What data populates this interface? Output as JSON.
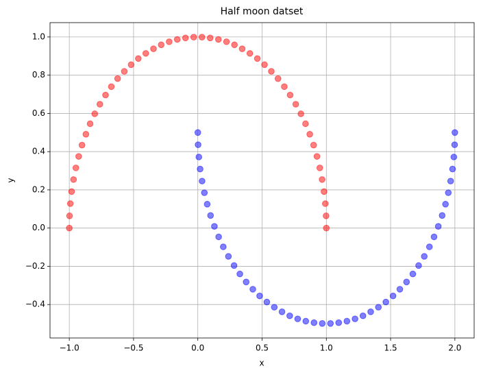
{
  "chart_data": {
    "type": "scatter",
    "title": "Half moon datset",
    "xlabel": "x",
    "ylabel": "y",
    "grid": true,
    "xlim": [
      -1.15,
      2.15
    ],
    "ylim": [
      -0.575,
      1.075
    ],
    "xticks": [
      {
        "value": -1.0,
        "label": "−1.0"
      },
      {
        "value": -0.5,
        "label": "−0.5"
      },
      {
        "value": 0.0,
        "label": "0.0"
      },
      {
        "value": 0.5,
        "label": "0.5"
      },
      {
        "value": 1.0,
        "label": "1.0"
      },
      {
        "value": 1.5,
        "label": "1.5"
      },
      {
        "value": 2.0,
        "label": "2.0"
      }
    ],
    "yticks": [
      {
        "value": -0.4,
        "label": "−0.4"
      },
      {
        "value": -0.2,
        "label": "−0.2"
      },
      {
        "value": 0.0,
        "label": "0.0"
      },
      {
        "value": 0.2,
        "label": "0.2"
      },
      {
        "value": 0.4,
        "label": "0.4"
      },
      {
        "value": 0.6,
        "label": "0.6"
      },
      {
        "value": 0.8,
        "label": "0.8"
      },
      {
        "value": 1.0,
        "label": "1.0"
      }
    ],
    "series": [
      {
        "color": "#ff0000",
        "opacity": 0.5,
        "x": [
          1,
          0.998,
          0.992,
          0.982,
          0.967,
          0.949,
          0.927,
          0.901,
          0.871,
          0.838,
          0.802,
          0.762,
          0.718,
          0.673,
          0.624,
          0.572,
          0.519,
          0.463,
          0.405,
          0.345,
          0.285,
          0.223,
          0.16,
          0.096,
          0.032,
          -0.032,
          -0.096,
          -0.16,
          -0.223,
          -0.285,
          -0.345,
          -0.405,
          -0.463,
          -0.519,
          -0.572,
          -0.624,
          -0.673,
          -0.718,
          -0.762,
          -0.802,
          -0.838,
          -0.871,
          -0.901,
          -0.927,
          -0.949,
          -0.967,
          -0.982,
          -0.992,
          -0.998,
          -1
        ],
        "values": [
          0,
          0.064,
          0.128,
          0.191,
          0.254,
          0.315,
          0.375,
          0.434,
          0.491,
          0.546,
          0.598,
          0.648,
          0.696,
          0.74,
          0.782,
          0.82,
          0.855,
          0.887,
          0.914,
          0.938,
          0.959,
          0.975,
          0.987,
          0.995,
          0.999,
          0.999,
          0.995,
          0.987,
          0.975,
          0.959,
          0.938,
          0.914,
          0.887,
          0.855,
          0.82,
          0.782,
          0.74,
          0.696,
          0.648,
          0.598,
          0.546,
          0.491,
          0.434,
          0.375,
          0.315,
          0.254,
          0.191,
          0.128,
          0.064,
          0
        ]
      },
      {
        "color": "#0000ff",
        "opacity": 0.5,
        "x": [
          0,
          0.002,
          0.008,
          0.018,
          0.033,
          0.051,
          0.073,
          0.099,
          0.129,
          0.162,
          0.198,
          0.238,
          0.282,
          0.327,
          0.376,
          0.428,
          0.481,
          0.537,
          0.595,
          0.655,
          0.715,
          0.777,
          0.84,
          0.904,
          0.968,
          1.032,
          1.096,
          1.16,
          1.223,
          1.285,
          1.345,
          1.405,
          1.463,
          1.519,
          1.572,
          1.624,
          1.673,
          1.718,
          1.762,
          1.802,
          1.838,
          1.871,
          1.901,
          1.927,
          1.949,
          1.967,
          1.982,
          1.992,
          1.998,
          2
        ],
        "values": [
          0.5,
          0.436,
          0.372,
          0.309,
          0.246,
          0.185,
          0.125,
          0.066,
          0.009,
          -0.046,
          -0.098,
          -0.148,
          -0.196,
          -0.24,
          -0.282,
          -0.32,
          -0.355,
          -0.387,
          -0.414,
          -0.438,
          -0.459,
          -0.475,
          -0.487,
          -0.495,
          -0.499,
          -0.499,
          -0.495,
          -0.487,
          -0.475,
          -0.459,
          -0.438,
          -0.414,
          -0.387,
          -0.355,
          -0.32,
          -0.282,
          -0.24,
          -0.196,
          -0.148,
          -0.098,
          -0.046,
          0.009,
          0.066,
          0.125,
          0.185,
          0.246,
          0.309,
          0.372,
          0.436,
          0.5
        ]
      }
    ]
  }
}
